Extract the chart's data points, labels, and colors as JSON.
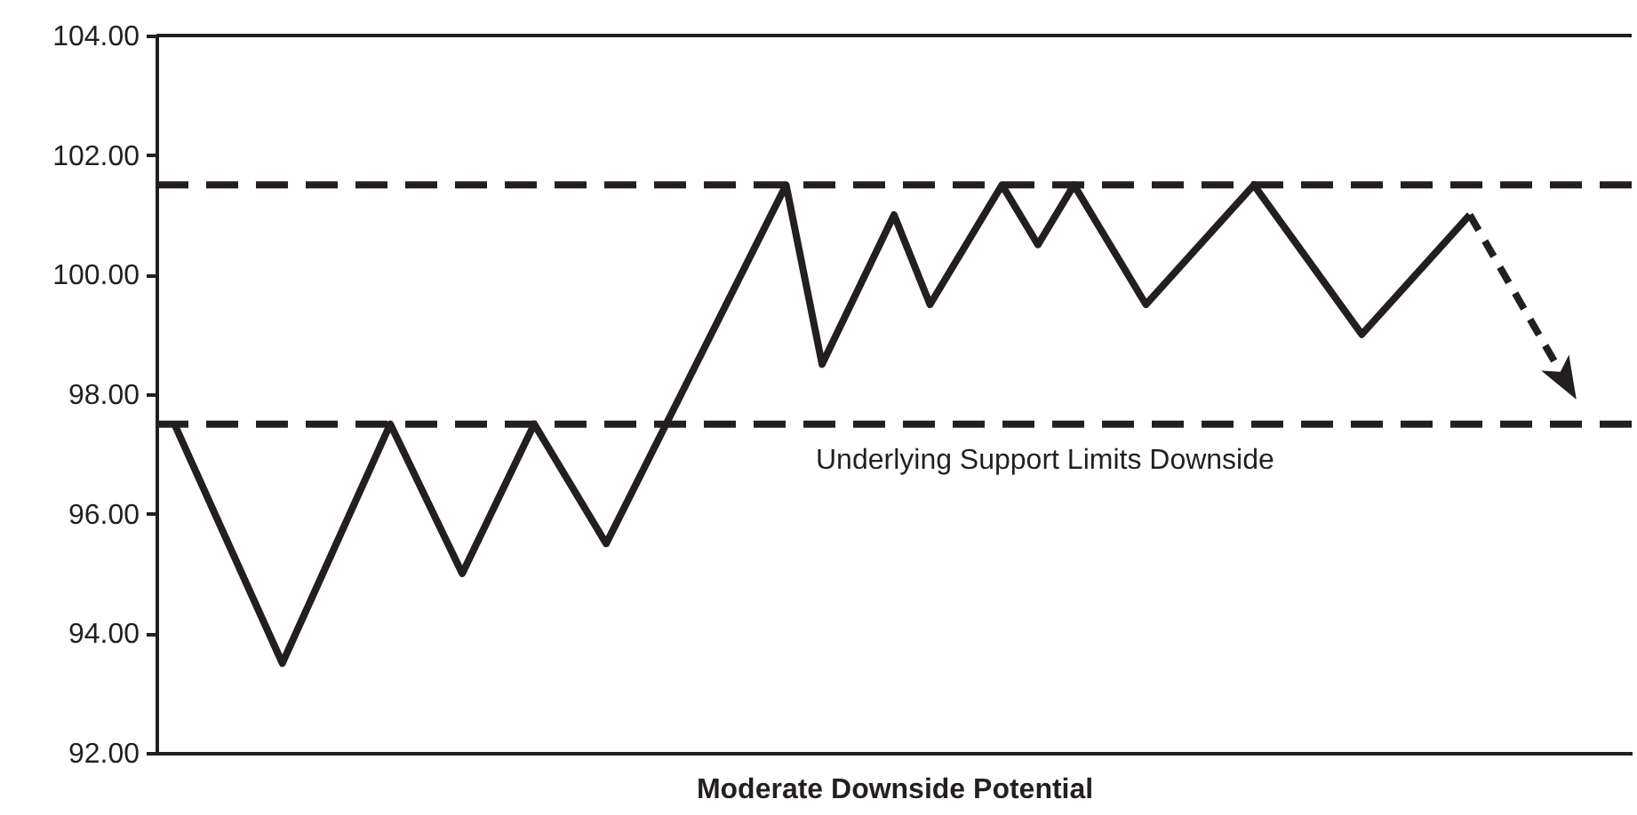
{
  "chart_data": {
    "type": "line",
    "xlabel": "Moderate Downside Potential",
    "categories": [
      null,
      null,
      null,
      null,
      null,
      null,
      null,
      null,
      null,
      null,
      null,
      null,
      null,
      null,
      null,
      null,
      null,
      null,
      null,
      null,
      null,
      null,
      null,
      null,
      null,
      null,
      null,
      null,
      null,
      null,
      null,
      null,
      null,
      null,
      null,
      null,
      null,
      null,
      null,
      null,
      null
    ],
    "ylim": [
      92,
      104
    ],
    "yticks": [
      {
        "value": 92,
        "label": "92.00"
      },
      {
        "value": 94,
        "label": "94.00"
      },
      {
        "value": 96,
        "label": "96.00"
      },
      {
        "value": 98,
        "label": "98.00"
      },
      {
        "value": 100,
        "label": "100.00"
      },
      {
        "value": 102,
        "label": "102.00"
      },
      {
        "value": 104,
        "label": "104.00"
      }
    ],
    "grid": false,
    "marker": "none",
    "series": [
      {
        "color": "#231f20",
        "values": [
          97.5,
          null,
          null,
          93.5,
          null,
          null,
          97.5,
          null,
          95,
          null,
          97.5,
          null,
          95.5,
          null,
          null,
          null,
          null,
          101.5,
          98.5,
          null,
          101,
          99.5,
          null,
          101.5,
          100.5,
          101.5,
          null,
          99.5,
          null,
          null,
          101.5,
          null,
          null,
          99,
          null,
          null,
          101,
          null,
          null,
          null,
          null
        ]
      }
    ],
    "ref_lines": [
      {
        "axis": "y",
        "value": 101.5,
        "line_style": "dashed",
        "color": "#231f20"
      },
      {
        "axis": "y",
        "value": 97.5,
        "line_style": "dashed",
        "color": "#231f20",
        "label": "Underlying Support Limits Downside"
      }
    ]
  }
}
